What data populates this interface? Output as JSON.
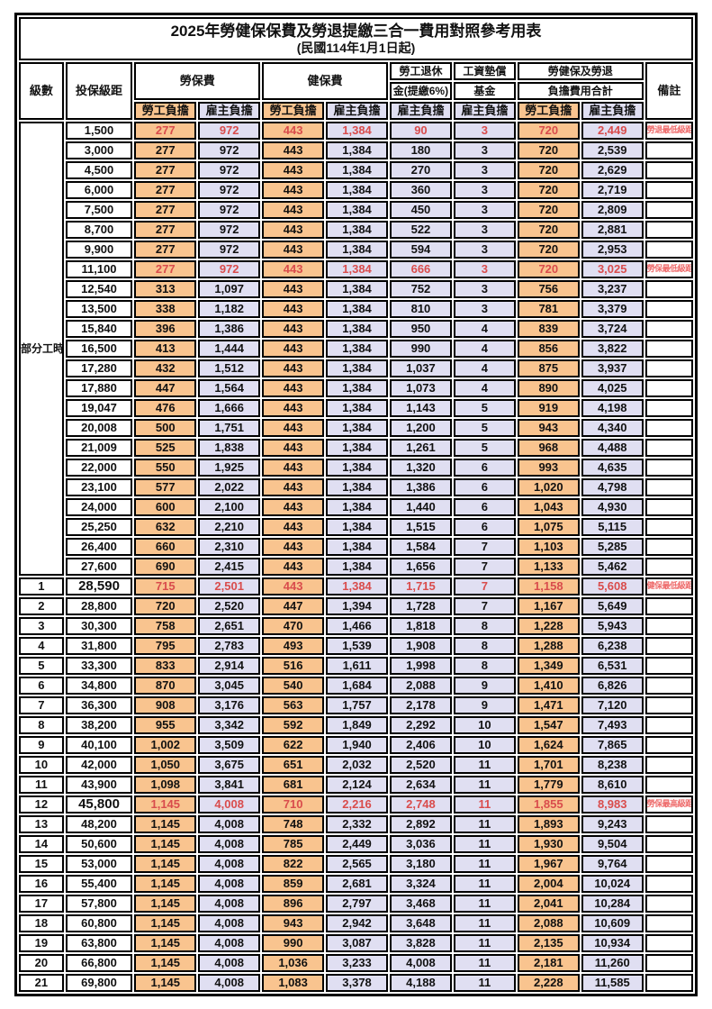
{
  "title": "2025年勞健保保費及勞退提繳三合一費用對照參考用表",
  "subtitle": "(民國114年1月1日起)",
  "header": {
    "level": "級數",
    "bracket": "投保級距",
    "labor_ins": "勞保費",
    "health_ins": "健保費",
    "pension_line1": "勞工退休",
    "pension_line2": "金(提繳6%)",
    "wage_fund_line1": "工資墊償",
    "wage_fund_line2": "基金",
    "total_line1": "勞健保及勞退",
    "total_line2": "負擔費用合計",
    "remark": "備註",
    "employee": "勞工負擔",
    "employer": "雇主負擔"
  },
  "part_time_label": "部分工時",
  "part_time_rowspan": 23,
  "colors": {
    "employee_bg": "#F9C48F",
    "employer_bg": "#E0DFF2",
    "highlight_red": "#D94C4C",
    "remark_red": "#EE6A6A",
    "border": "#000000"
  },
  "rows": [
    {
      "level": "",
      "bracket": "1,500",
      "cells": [
        "277",
        "972",
        "443",
        "1,384",
        "90",
        "3",
        "720",
        "2,449"
      ],
      "remark": "勞退最低級距",
      "red": true,
      "big": false
    },
    {
      "level": "",
      "bracket": "3,000",
      "cells": [
        "277",
        "972",
        "443",
        "1,384",
        "180",
        "3",
        "720",
        "2,539"
      ],
      "remark": "",
      "red": false,
      "big": false
    },
    {
      "level": "",
      "bracket": "4,500",
      "cells": [
        "277",
        "972",
        "443",
        "1,384",
        "270",
        "3",
        "720",
        "2,629"
      ],
      "remark": "",
      "red": false,
      "big": false
    },
    {
      "level": "",
      "bracket": "6,000",
      "cells": [
        "277",
        "972",
        "443",
        "1,384",
        "360",
        "3",
        "720",
        "2,719"
      ],
      "remark": "",
      "red": false,
      "big": false
    },
    {
      "level": "",
      "bracket": "7,500",
      "cells": [
        "277",
        "972",
        "443",
        "1,384",
        "450",
        "3",
        "720",
        "2,809"
      ],
      "remark": "",
      "red": false,
      "big": false
    },
    {
      "level": "",
      "bracket": "8,700",
      "cells": [
        "277",
        "972",
        "443",
        "1,384",
        "522",
        "3",
        "720",
        "2,881"
      ],
      "remark": "",
      "red": false,
      "big": false
    },
    {
      "level": "",
      "bracket": "9,900",
      "cells": [
        "277",
        "972",
        "443",
        "1,384",
        "594",
        "3",
        "720",
        "2,953"
      ],
      "remark": "",
      "red": false,
      "big": false
    },
    {
      "level": "",
      "bracket": "11,100",
      "cells": [
        "277",
        "972",
        "443",
        "1,384",
        "666",
        "3",
        "720",
        "3,025"
      ],
      "remark": "勞保最低級距",
      "red": true,
      "big": false
    },
    {
      "level": "",
      "bracket": "12,540",
      "cells": [
        "313",
        "1,097",
        "443",
        "1,384",
        "752",
        "3",
        "756",
        "3,237"
      ],
      "remark": "",
      "red": false,
      "big": false
    },
    {
      "level": "",
      "bracket": "13,500",
      "cells": [
        "338",
        "1,182",
        "443",
        "1,384",
        "810",
        "3",
        "781",
        "3,379"
      ],
      "remark": "",
      "red": false,
      "big": false
    },
    {
      "level": "",
      "bracket": "15,840",
      "cells": [
        "396",
        "1,386",
        "443",
        "1,384",
        "950",
        "4",
        "839",
        "3,724"
      ],
      "remark": "",
      "red": false,
      "big": false
    },
    {
      "level": "",
      "bracket": "16,500",
      "cells": [
        "413",
        "1,444",
        "443",
        "1,384",
        "990",
        "4",
        "856",
        "3,822"
      ],
      "remark": "",
      "red": false,
      "big": false
    },
    {
      "level": "",
      "bracket": "17,280",
      "cells": [
        "432",
        "1,512",
        "443",
        "1,384",
        "1,037",
        "4",
        "875",
        "3,937"
      ],
      "remark": "",
      "red": false,
      "big": false
    },
    {
      "level": "",
      "bracket": "17,880",
      "cells": [
        "447",
        "1,564",
        "443",
        "1,384",
        "1,073",
        "4",
        "890",
        "4,025"
      ],
      "remark": "",
      "red": false,
      "big": false
    },
    {
      "level": "",
      "bracket": "19,047",
      "cells": [
        "476",
        "1,666",
        "443",
        "1,384",
        "1,143",
        "5",
        "919",
        "4,198"
      ],
      "remark": "",
      "red": false,
      "big": false
    },
    {
      "level": "",
      "bracket": "20,008",
      "cells": [
        "500",
        "1,751",
        "443",
        "1,384",
        "1,200",
        "5",
        "943",
        "4,340"
      ],
      "remark": "",
      "red": false,
      "big": false
    },
    {
      "level": "",
      "bracket": "21,009",
      "cells": [
        "525",
        "1,838",
        "443",
        "1,384",
        "1,261",
        "5",
        "968",
        "4,488"
      ],
      "remark": "",
      "red": false,
      "big": false
    },
    {
      "level": "",
      "bracket": "22,000",
      "cells": [
        "550",
        "1,925",
        "443",
        "1,384",
        "1,320",
        "6",
        "993",
        "4,635"
      ],
      "remark": "",
      "red": false,
      "big": false
    },
    {
      "level": "",
      "bracket": "23,100",
      "cells": [
        "577",
        "2,022",
        "443",
        "1,384",
        "1,386",
        "6",
        "1,020",
        "4,798"
      ],
      "remark": "",
      "red": false,
      "big": false
    },
    {
      "level": "",
      "bracket": "24,000",
      "cells": [
        "600",
        "2,100",
        "443",
        "1,384",
        "1,440",
        "6",
        "1,043",
        "4,930"
      ],
      "remark": "",
      "red": false,
      "big": false
    },
    {
      "level": "",
      "bracket": "25,250",
      "cells": [
        "632",
        "2,210",
        "443",
        "1,384",
        "1,515",
        "6",
        "1,075",
        "5,115"
      ],
      "remark": "",
      "red": false,
      "big": false
    },
    {
      "level": "",
      "bracket": "26,400",
      "cells": [
        "660",
        "2,310",
        "443",
        "1,384",
        "1,584",
        "7",
        "1,103",
        "5,285"
      ],
      "remark": "",
      "red": false,
      "big": false
    },
    {
      "level": "",
      "bracket": "27,600",
      "cells": [
        "690",
        "2,415",
        "443",
        "1,384",
        "1,656",
        "7",
        "1,133",
        "5,462"
      ],
      "remark": "",
      "red": false,
      "big": false
    },
    {
      "level": "1",
      "bracket": "28,590",
      "cells": [
        "715",
        "2,501",
        "443",
        "1,384",
        "1,715",
        "7",
        "1,158",
        "5,608"
      ],
      "remark": "健保最低級距",
      "red": true,
      "big": true
    },
    {
      "level": "2",
      "bracket": "28,800",
      "cells": [
        "720",
        "2,520",
        "447",
        "1,394",
        "1,728",
        "7",
        "1,167",
        "5,649"
      ],
      "remark": "",
      "red": false,
      "big": false
    },
    {
      "level": "3",
      "bracket": "30,300",
      "cells": [
        "758",
        "2,651",
        "470",
        "1,466",
        "1,818",
        "8",
        "1,228",
        "5,943"
      ],
      "remark": "",
      "red": false,
      "big": false
    },
    {
      "level": "4",
      "bracket": "31,800",
      "cells": [
        "795",
        "2,783",
        "493",
        "1,539",
        "1,908",
        "8",
        "1,288",
        "6,238"
      ],
      "remark": "",
      "red": false,
      "big": false
    },
    {
      "level": "5",
      "bracket": "33,300",
      "cells": [
        "833",
        "2,914",
        "516",
        "1,611",
        "1,998",
        "8",
        "1,349",
        "6,531"
      ],
      "remark": "",
      "red": false,
      "big": false
    },
    {
      "level": "6",
      "bracket": "34,800",
      "cells": [
        "870",
        "3,045",
        "540",
        "1,684",
        "2,088",
        "9",
        "1,410",
        "6,826"
      ],
      "remark": "",
      "red": false,
      "big": false
    },
    {
      "level": "7",
      "bracket": "36,300",
      "cells": [
        "908",
        "3,176",
        "563",
        "1,757",
        "2,178",
        "9",
        "1,471",
        "7,120"
      ],
      "remark": "",
      "red": false,
      "big": false
    },
    {
      "level": "8",
      "bracket": "38,200",
      "cells": [
        "955",
        "3,342",
        "592",
        "1,849",
        "2,292",
        "10",
        "1,547",
        "7,493"
      ],
      "remark": "",
      "red": false,
      "big": false
    },
    {
      "level": "9",
      "bracket": "40,100",
      "cells": [
        "1,002",
        "3,509",
        "622",
        "1,940",
        "2,406",
        "10",
        "1,624",
        "7,865"
      ],
      "remark": "",
      "red": false,
      "big": false
    },
    {
      "level": "10",
      "bracket": "42,000",
      "cells": [
        "1,050",
        "3,675",
        "651",
        "2,032",
        "2,520",
        "11",
        "1,701",
        "8,238"
      ],
      "remark": "",
      "red": false,
      "big": false
    },
    {
      "level": "11",
      "bracket": "43,900",
      "cells": [
        "1,098",
        "3,841",
        "681",
        "2,124",
        "2,634",
        "11",
        "1,779",
        "8,610"
      ],
      "remark": "",
      "red": false,
      "big": false
    },
    {
      "level": "12",
      "bracket": "45,800",
      "cells": [
        "1,145",
        "4,008",
        "710",
        "2,216",
        "2,748",
        "11",
        "1,855",
        "8,983"
      ],
      "remark": "勞保最高級距",
      "red": true,
      "big": true
    },
    {
      "level": "13",
      "bracket": "48,200",
      "cells": [
        "1,145",
        "4,008",
        "748",
        "2,332",
        "2,892",
        "11",
        "1,893",
        "9,243"
      ],
      "remark": "",
      "red": false,
      "big": false
    },
    {
      "level": "14",
      "bracket": "50,600",
      "cells": [
        "1,145",
        "4,008",
        "785",
        "2,449",
        "3,036",
        "11",
        "1,930",
        "9,504"
      ],
      "remark": "",
      "red": false,
      "big": false
    },
    {
      "level": "15",
      "bracket": "53,000",
      "cells": [
        "1,145",
        "4,008",
        "822",
        "2,565",
        "3,180",
        "11",
        "1,967",
        "9,764"
      ],
      "remark": "",
      "red": false,
      "big": false
    },
    {
      "level": "16",
      "bracket": "55,400",
      "cells": [
        "1,145",
        "4,008",
        "859",
        "2,681",
        "3,324",
        "11",
        "2,004",
        "10,024"
      ],
      "remark": "",
      "red": false,
      "big": false
    },
    {
      "level": "17",
      "bracket": "57,800",
      "cells": [
        "1,145",
        "4,008",
        "896",
        "2,797",
        "3,468",
        "11",
        "2,041",
        "10,284"
      ],
      "remark": "",
      "red": false,
      "big": false
    },
    {
      "level": "18",
      "bracket": "60,800",
      "cells": [
        "1,145",
        "4,008",
        "943",
        "2,942",
        "3,648",
        "11",
        "2,088",
        "10,609"
      ],
      "remark": "",
      "red": false,
      "big": false
    },
    {
      "level": "19",
      "bracket": "63,800",
      "cells": [
        "1,145",
        "4,008",
        "990",
        "3,087",
        "3,828",
        "11",
        "2,135",
        "10,934"
      ],
      "remark": "",
      "red": false,
      "big": false
    },
    {
      "level": "20",
      "bracket": "66,800",
      "cells": [
        "1,145",
        "4,008",
        "1,036",
        "3,233",
        "4,008",
        "11",
        "2,181",
        "11,260"
      ],
      "remark": "",
      "red": false,
      "big": false
    },
    {
      "level": "21",
      "bracket": "69,800",
      "cells": [
        "1,145",
        "4,008",
        "1,083",
        "3,378",
        "4,188",
        "11",
        "2,228",
        "11,585"
      ],
      "remark": "",
      "red": false,
      "big": false
    }
  ]
}
